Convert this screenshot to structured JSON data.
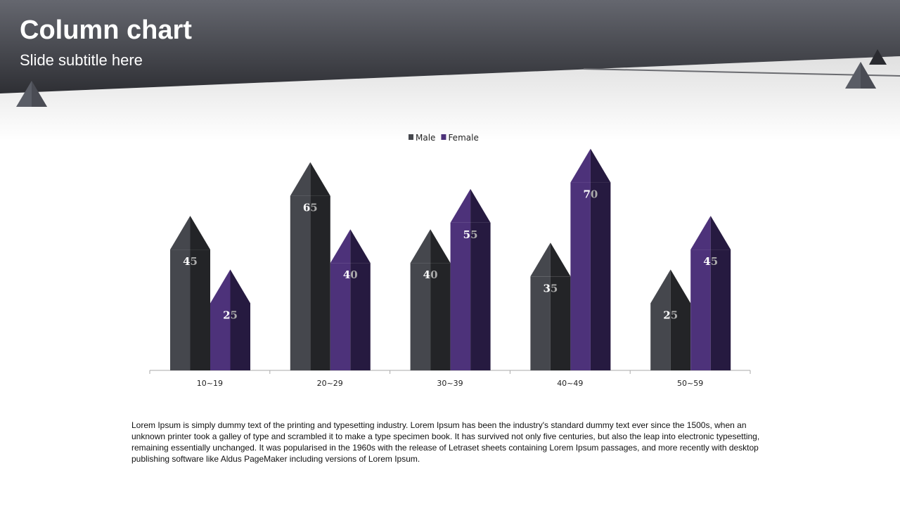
{
  "slide": {
    "title": "Column chart",
    "subtitle": "Slide subtitle here",
    "body": "Lorem Ipsum is simply dummy text of the printing and typesetting industry. Lorem Ipsum has been the industry's standard dummy text ever since the 1500s, when an unknown printer took a galley of type and scrambled it to make a type specimen book. It has survived not only five centuries, but also the leap into electronic typesetting, remaining essentially unchanged. It was popularised in the 1960s with the release of Letraset sheets containing Lorem Ipsum passages, and more recently with desktop publishing software like Aldus PageMaker including versions of Lorem Ipsum."
  },
  "chart_data": {
    "type": "bar",
    "title": "",
    "xlabel": "",
    "ylabel": "",
    "categories": [
      "10~19",
      "20~29",
      "30~39",
      "40~49",
      "50~59"
    ],
    "series": [
      {
        "name": "Male",
        "values": [
          45,
          65,
          40,
          35,
          25
        ],
        "color": "#45474d",
        "shade": "#232427"
      },
      {
        "name": "Female",
        "values": [
          25,
          40,
          55,
          70,
          45
        ],
        "color": "#4d327a",
        "shade": "#261a40"
      }
    ],
    "ylim": [
      0,
      80
    ],
    "grid": false,
    "legend": "top-center",
    "data_labels": true
  }
}
